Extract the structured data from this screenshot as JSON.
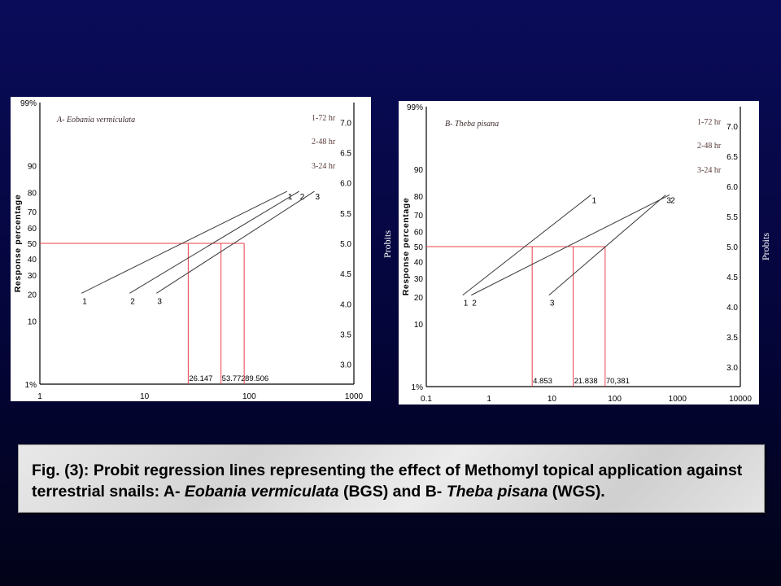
{
  "chart_data": [
    {
      "type": "line",
      "title": "A- Eobania vermiculata",
      "xlabel": "",
      "ylabel": "Response percentage",
      "y2label": "Probits",
      "x_scale": "log",
      "y_scale": "probit",
      "xlim": [
        1,
        1000
      ],
      "ylim": [
        1,
        99
      ],
      "x_ticks": [
        "1",
        "10",
        "100",
        "1000"
      ],
      "y_ticks": [
        "1",
        "10",
        "20",
        "30",
        "40",
        "50",
        "60",
        "70",
        "80",
        "90",
        "99"
      ],
      "y_top_tick": "99%",
      "y_bottom_tick": "1%",
      "y2_ticks": [
        "3.0",
        "3.5",
        "4.0",
        "4.5",
        "5.0",
        "5.5",
        "6.0",
        "6.5",
        "7.0"
      ],
      "legend": [
        "1-72 hr",
        "2-48 hr",
        "3-24 hr"
      ],
      "series": [
        {
          "name": "1",
          "label_start": "1",
          "label_end": "1",
          "points": [
            [
              2.5,
              20.5
            ],
            [
              230,
              80.5
            ]
          ]
        },
        {
          "name": "2",
          "label_start": "2",
          "label_end": "2",
          "points": [
            [
              7.2,
              20.5
            ],
            [
              300,
              80.5
            ]
          ]
        },
        {
          "name": "3",
          "label_start": "3",
          "label_end": "3",
          "points": [
            [
              13,
              20.5
            ],
            [
              420,
              80.5
            ]
          ]
        }
      ],
      "lc50_values": [
        26.147,
        53.772,
        89.506
      ],
      "lc50_labels": [
        "26.147",
        "53.772",
        "89.506"
      ],
      "reference_y": 50
    },
    {
      "type": "line",
      "title": "B- Theba pisana",
      "xlabel": "",
      "ylabel": "Response percentage",
      "y2label": "Probits",
      "x_scale": "log",
      "y_scale": "probit",
      "xlim": [
        0.1,
        10000
      ],
      "ylim": [
        1,
        99
      ],
      "x_ticks": [
        "0.1",
        "1",
        "10",
        "100",
        "1000",
        "10000"
      ],
      "y_ticks": [
        "1",
        "10",
        "20",
        "30",
        "40",
        "50",
        "60",
        "70",
        "80",
        "90",
        "99"
      ],
      "y_top_tick": "99%",
      "y_bottom_tick": "1%",
      "y2_ticks": [
        "3.0",
        "3.5",
        "4.0",
        "4.5",
        "5.0",
        "5.5",
        "6.0",
        "6.5",
        "7.0"
      ],
      "legend": [
        "1-72 hr",
        "2-48 hr",
        "3-24 hr"
      ],
      "series": [
        {
          "name": "1",
          "label_start": "1",
          "label_end": "1",
          "points": [
            [
              0.38,
              21
            ],
            [
              42,
              80.5
            ]
          ]
        },
        {
          "name": "2",
          "label_start": "2",
          "label_end": "2",
          "points": [
            [
              0.52,
              21
            ],
            [
              750,
              80.5
            ]
          ]
        },
        {
          "name": "3",
          "label_start": "3",
          "label_end": "3",
          "points": [
            [
              9,
              21
            ],
            [
              650,
              80.5
            ]
          ]
        }
      ],
      "lc50_values": [
        4.853,
        21.838,
        70.381
      ],
      "lc50_labels": [
        "4.853",
        "21.838",
        "70,381"
      ],
      "reference_y": 50
    }
  ],
  "caption": {
    "prefix": "Fig. (3): Probit regression lines representing the effect of Methomyl topical application against terrestrial snails:  A- ",
    "species_a": "Eobania vermiculata",
    "middle": " (BGS) and B- ",
    "species_b": "Theba pisana",
    "suffix": "  (WGS)."
  },
  "colors": {
    "line": "#3a3a3a",
    "reference": "#e8404a",
    "axis": "#000000",
    "legend_text": "#5a3a3a",
    "title_text": "#3a2a2a"
  }
}
